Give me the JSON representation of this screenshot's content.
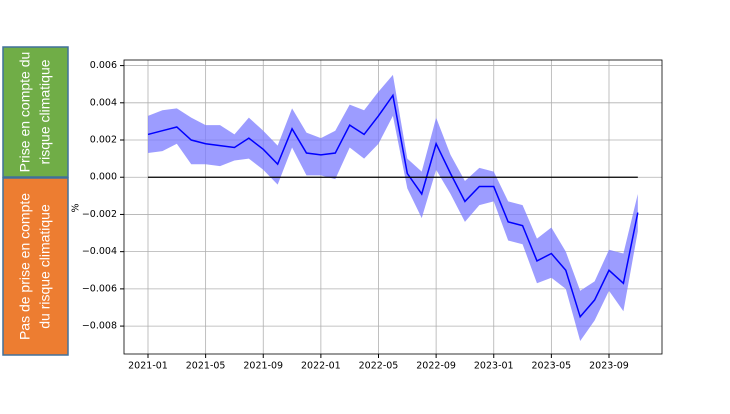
{
  "side_boxes": [
    {
      "lines": [
        "Prise en compte du",
        "risque climatique"
      ],
      "color": "#70ad47"
    },
    {
      "lines": [
        "Pas de prise en compte",
        "du risque climatique"
      ],
      "color": "#ed7d31"
    }
  ],
  "chart_data": {
    "type": "line",
    "ylabel": "%",
    "x": [
      "2021-01",
      "2021-02",
      "2021-03",
      "2021-04",
      "2021-05",
      "2021-06",
      "2021-07",
      "2021-08",
      "2021-09",
      "2021-10",
      "2021-11",
      "2021-12",
      "2022-01",
      "2022-02",
      "2022-03",
      "2022-04",
      "2022-05",
      "2022-06",
      "2022-07",
      "2022-08",
      "2022-09",
      "2022-10",
      "2022-11",
      "2022-12",
      "2023-01",
      "2023-02",
      "2023-03",
      "2023-04",
      "2023-05",
      "2023-06",
      "2023-07",
      "2023-08",
      "2023-09",
      "2023-10",
      "2023-11"
    ],
    "series": [
      {
        "color": "#0000ff",
        "values": [
          0.0023,
          0.0025,
          0.0027,
          0.002,
          0.0018,
          0.0017,
          0.0016,
          0.0021,
          0.0015,
          0.0007,
          0.0026,
          0.0013,
          0.0012,
          0.0013,
          0.0028,
          0.0023,
          0.0033,
          0.0044,
          0.0002,
          -0.0009,
          0.0018,
          0.0002,
          -0.0013,
          -0.0005,
          -0.0005,
          -0.0024,
          -0.0026,
          -0.0045,
          -0.0041,
          -0.005,
          -0.0075,
          -0.0066,
          -0.005,
          -0.0057,
          -0.0019
        ],
        "upper": [
          0.0033,
          0.0036,
          0.0037,
          0.0032,
          0.0028,
          0.0028,
          0.0023,
          0.0032,
          0.0025,
          0.0017,
          0.0037,
          0.0024,
          0.0021,
          0.0025,
          0.0039,
          0.0036,
          0.0046,
          0.0055,
          0.001,
          0.0003,
          0.0032,
          0.0012,
          -0.0002,
          0.0005,
          0.0003,
          -0.0013,
          -0.0015,
          -0.0033,
          -0.0027,
          -0.004,
          -0.0061,
          -0.0056,
          -0.0039,
          -0.0041,
          -0.0009
        ],
        "lower": [
          0.0013,
          0.0014,
          0.0018,
          0.0007,
          0.0007,
          0.0006,
          0.0009,
          0.001,
          0.0004,
          -0.0004,
          0.0016,
          0.0001,
          0.0001,
          -0.0001,
          0.0016,
          0.001,
          0.0018,
          0.0033,
          -0.0006,
          -0.0022,
          0.0004,
          -0.0009,
          -0.0024,
          -0.0015,
          -0.0013,
          -0.0034,
          -0.0036,
          -0.0057,
          -0.0054,
          -0.006,
          -0.0088,
          -0.0077,
          -0.0061,
          -0.0072,
          -0.0029
        ],
        "band_color": "#7b7bff"
      }
    ],
    "hline": 0,
    "hline_color": "#000000",
    "ylim": [
      -0.0095,
      0.0063
    ],
    "yticks": [
      {
        "value": -0.008,
        "label": "−0.008"
      },
      {
        "value": -0.006,
        "label": "−0.006"
      },
      {
        "value": -0.004,
        "label": "−0.004"
      },
      {
        "value": -0.002,
        "label": "−0.002"
      },
      {
        "value": 0,
        "label": "0.000"
      },
      0.002,
      0.004,
      0.006
    ],
    "xticks": [
      "2021-01",
      "2021-05",
      "2021-09",
      "2022-01",
      "2022-05",
      "2022-09",
      "2023-01",
      "2023-05",
      "2023-09"
    ],
    "grid": true
  }
}
